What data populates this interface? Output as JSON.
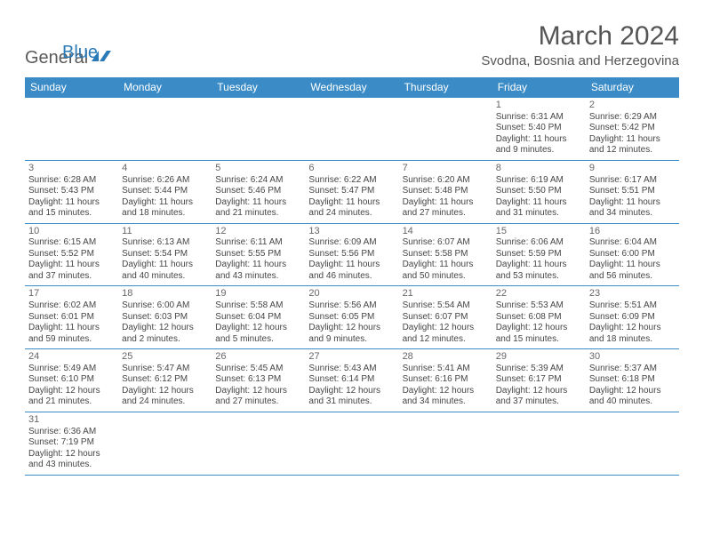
{
  "logo": {
    "general": "General",
    "blue": "Blue"
  },
  "title": "March 2024",
  "location": "Svodna, Bosnia and Herzegovina",
  "colors": {
    "header_bg": "#3b8bc6",
    "header_text": "#ffffff",
    "cell_border": "#3b8bc6",
    "body_text": "#454545",
    "title_text": "#555555",
    "logo_gray": "#5a5a5a",
    "logo_blue": "#2a7ab8",
    "background": "#ffffff"
  },
  "typography": {
    "title_fontsize": 30,
    "location_fontsize": 15,
    "dayheader_fontsize": 12,
    "daynum_fontsize": 11,
    "cell_fontsize": 10
  },
  "day_headers": [
    "Sunday",
    "Monday",
    "Tuesday",
    "Wednesday",
    "Thursday",
    "Friday",
    "Saturday"
  ],
  "weeks": [
    [
      {
        "empty": true
      },
      {
        "empty": true
      },
      {
        "empty": true
      },
      {
        "empty": true
      },
      {
        "empty": true
      },
      {
        "num": "1",
        "sunrise": "Sunrise: 6:31 AM",
        "sunset": "Sunset: 5:40 PM",
        "daylight1": "Daylight: 11 hours",
        "daylight2": "and 9 minutes."
      },
      {
        "num": "2",
        "sunrise": "Sunrise: 6:29 AM",
        "sunset": "Sunset: 5:42 PM",
        "daylight1": "Daylight: 11 hours",
        "daylight2": "and 12 minutes."
      }
    ],
    [
      {
        "num": "3",
        "sunrise": "Sunrise: 6:28 AM",
        "sunset": "Sunset: 5:43 PM",
        "daylight1": "Daylight: 11 hours",
        "daylight2": "and 15 minutes."
      },
      {
        "num": "4",
        "sunrise": "Sunrise: 6:26 AM",
        "sunset": "Sunset: 5:44 PM",
        "daylight1": "Daylight: 11 hours",
        "daylight2": "and 18 minutes."
      },
      {
        "num": "5",
        "sunrise": "Sunrise: 6:24 AM",
        "sunset": "Sunset: 5:46 PM",
        "daylight1": "Daylight: 11 hours",
        "daylight2": "and 21 minutes."
      },
      {
        "num": "6",
        "sunrise": "Sunrise: 6:22 AM",
        "sunset": "Sunset: 5:47 PM",
        "daylight1": "Daylight: 11 hours",
        "daylight2": "and 24 minutes."
      },
      {
        "num": "7",
        "sunrise": "Sunrise: 6:20 AM",
        "sunset": "Sunset: 5:48 PM",
        "daylight1": "Daylight: 11 hours",
        "daylight2": "and 27 minutes."
      },
      {
        "num": "8",
        "sunrise": "Sunrise: 6:19 AM",
        "sunset": "Sunset: 5:50 PM",
        "daylight1": "Daylight: 11 hours",
        "daylight2": "and 31 minutes."
      },
      {
        "num": "9",
        "sunrise": "Sunrise: 6:17 AM",
        "sunset": "Sunset: 5:51 PM",
        "daylight1": "Daylight: 11 hours",
        "daylight2": "and 34 minutes."
      }
    ],
    [
      {
        "num": "10",
        "sunrise": "Sunrise: 6:15 AM",
        "sunset": "Sunset: 5:52 PM",
        "daylight1": "Daylight: 11 hours",
        "daylight2": "and 37 minutes."
      },
      {
        "num": "11",
        "sunrise": "Sunrise: 6:13 AM",
        "sunset": "Sunset: 5:54 PM",
        "daylight1": "Daylight: 11 hours",
        "daylight2": "and 40 minutes."
      },
      {
        "num": "12",
        "sunrise": "Sunrise: 6:11 AM",
        "sunset": "Sunset: 5:55 PM",
        "daylight1": "Daylight: 11 hours",
        "daylight2": "and 43 minutes."
      },
      {
        "num": "13",
        "sunrise": "Sunrise: 6:09 AM",
        "sunset": "Sunset: 5:56 PM",
        "daylight1": "Daylight: 11 hours",
        "daylight2": "and 46 minutes."
      },
      {
        "num": "14",
        "sunrise": "Sunrise: 6:07 AM",
        "sunset": "Sunset: 5:58 PM",
        "daylight1": "Daylight: 11 hours",
        "daylight2": "and 50 minutes."
      },
      {
        "num": "15",
        "sunrise": "Sunrise: 6:06 AM",
        "sunset": "Sunset: 5:59 PM",
        "daylight1": "Daylight: 11 hours",
        "daylight2": "and 53 minutes."
      },
      {
        "num": "16",
        "sunrise": "Sunrise: 6:04 AM",
        "sunset": "Sunset: 6:00 PM",
        "daylight1": "Daylight: 11 hours",
        "daylight2": "and 56 minutes."
      }
    ],
    [
      {
        "num": "17",
        "sunrise": "Sunrise: 6:02 AM",
        "sunset": "Sunset: 6:01 PM",
        "daylight1": "Daylight: 11 hours",
        "daylight2": "and 59 minutes."
      },
      {
        "num": "18",
        "sunrise": "Sunrise: 6:00 AM",
        "sunset": "Sunset: 6:03 PM",
        "daylight1": "Daylight: 12 hours",
        "daylight2": "and 2 minutes."
      },
      {
        "num": "19",
        "sunrise": "Sunrise: 5:58 AM",
        "sunset": "Sunset: 6:04 PM",
        "daylight1": "Daylight: 12 hours",
        "daylight2": "and 5 minutes."
      },
      {
        "num": "20",
        "sunrise": "Sunrise: 5:56 AM",
        "sunset": "Sunset: 6:05 PM",
        "daylight1": "Daylight: 12 hours",
        "daylight2": "and 9 minutes."
      },
      {
        "num": "21",
        "sunrise": "Sunrise: 5:54 AM",
        "sunset": "Sunset: 6:07 PM",
        "daylight1": "Daylight: 12 hours",
        "daylight2": "and 12 minutes."
      },
      {
        "num": "22",
        "sunrise": "Sunrise: 5:53 AM",
        "sunset": "Sunset: 6:08 PM",
        "daylight1": "Daylight: 12 hours",
        "daylight2": "and 15 minutes."
      },
      {
        "num": "23",
        "sunrise": "Sunrise: 5:51 AM",
        "sunset": "Sunset: 6:09 PM",
        "daylight1": "Daylight: 12 hours",
        "daylight2": "and 18 minutes."
      }
    ],
    [
      {
        "num": "24",
        "sunrise": "Sunrise: 5:49 AM",
        "sunset": "Sunset: 6:10 PM",
        "daylight1": "Daylight: 12 hours",
        "daylight2": "and 21 minutes."
      },
      {
        "num": "25",
        "sunrise": "Sunrise: 5:47 AM",
        "sunset": "Sunset: 6:12 PM",
        "daylight1": "Daylight: 12 hours",
        "daylight2": "and 24 minutes."
      },
      {
        "num": "26",
        "sunrise": "Sunrise: 5:45 AM",
        "sunset": "Sunset: 6:13 PM",
        "daylight1": "Daylight: 12 hours",
        "daylight2": "and 27 minutes."
      },
      {
        "num": "27",
        "sunrise": "Sunrise: 5:43 AM",
        "sunset": "Sunset: 6:14 PM",
        "daylight1": "Daylight: 12 hours",
        "daylight2": "and 31 minutes."
      },
      {
        "num": "28",
        "sunrise": "Sunrise: 5:41 AM",
        "sunset": "Sunset: 6:16 PM",
        "daylight1": "Daylight: 12 hours",
        "daylight2": "and 34 minutes."
      },
      {
        "num": "29",
        "sunrise": "Sunrise: 5:39 AM",
        "sunset": "Sunset: 6:17 PM",
        "daylight1": "Daylight: 12 hours",
        "daylight2": "and 37 minutes."
      },
      {
        "num": "30",
        "sunrise": "Sunrise: 5:37 AM",
        "sunset": "Sunset: 6:18 PM",
        "daylight1": "Daylight: 12 hours",
        "daylight2": "and 40 minutes."
      }
    ],
    [
      {
        "num": "31",
        "sunrise": "Sunrise: 6:36 AM",
        "sunset": "Sunset: 7:19 PM",
        "daylight1": "Daylight: 12 hours",
        "daylight2": "and 43 minutes."
      },
      {
        "empty": true
      },
      {
        "empty": true
      },
      {
        "empty": true
      },
      {
        "empty": true
      },
      {
        "empty": true
      },
      {
        "empty": true
      }
    ]
  ]
}
